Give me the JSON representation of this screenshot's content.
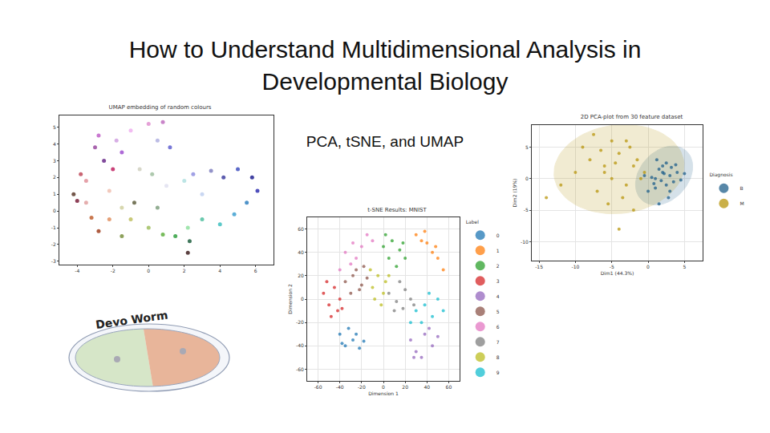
{
  "title": "How to Understand Multidimensional Analysis in Developmental Biology",
  "subtitle": "PCA, tSNE, and UMAP",
  "logo": {
    "text": "Devo Worm"
  },
  "chart_data": [
    {
      "type": "scatter",
      "title": "UMAP embedding of random colours",
      "x": [
        -4.2,
        -4.0,
        -3.8,
        -3.5,
        -3.0,
        -2.8,
        -2.5,
        -2.0,
        -1.8,
        -1.5,
        -1.0,
        0.0,
        0.8,
        0.5,
        1.2,
        -0.5,
        0.2,
        1.0,
        2.0,
        2.5,
        3.5,
        4.2,
        5.0,
        5.8,
        6.1,
        5.5,
        4.8,
        4.0,
        3.0,
        2.2,
        2.3,
        2.2,
        1.5,
        0.8,
        0.0,
        -1.0,
        -1.5,
        -2.2,
        -2.8,
        -3.2,
        -1.5,
        -0.8,
        0.5,
        -3.5,
        -2.2,
        3.0
      ],
      "y": [
        1.0,
        0.6,
        2.2,
        1.8,
        3.8,
        4.5,
        3.0,
        2.5,
        4.2,
        3.5,
        4.8,
        5.2,
        5.3,
        4.2,
        3.8,
        2.5,
        2.2,
        1.5,
        1.8,
        2.2,
        2.4,
        2.0,
        2.5,
        2.0,
        1.2,
        0.5,
        -0.2,
        -0.8,
        -0.5,
        -1.0,
        -1.8,
        -2.5,
        -1.5,
        -1.4,
        -1.0,
        -0.5,
        0.2,
        -0.5,
        -1.2,
        -0.4,
        -1.5,
        0.5,
        0.2,
        0.5,
        1.2,
        1.0
      ],
      "colors": [
        "#5a3a2a",
        "#7a1e3a",
        "#c04a5a",
        "#e0909a",
        "#9a4aa0",
        "#c060c8",
        "#6a2a8a",
        "#c02060",
        "#d0a0e0",
        "#a050d0",
        "#f0b0f0",
        "#e090d0",
        "#c070c0",
        "#b0b0e0",
        "#6060d0",
        "#d0d0c0",
        "#a0c0a0",
        "#e0e0f0",
        "#b0e0e0",
        "#9090e0",
        "#8080c0",
        "#4040a0",
        "#4050c0",
        "#202090",
        "#3030b0",
        "#3080c0",
        "#40a0d0",
        "#40c0c0",
        "#50c0a0",
        "#90e0a0",
        "#206040",
        "#402020",
        "#30a040",
        "#60b040",
        "#a0c060",
        "#c0c060",
        "#d0d0a0",
        "#e09060",
        "#a04020",
        "#c06030",
        "#7a9040",
        "#606040",
        "#80a080",
        "#e0a0a0",
        "#f0c0b0",
        "#c0d0f0"
      ],
      "xlim": [
        -5,
        7
      ],
      "ylim": [
        -3.2,
        5.7
      ],
      "xticks": [
        -4,
        -2,
        0,
        2,
        4,
        6
      ],
      "yticks": [
        -3,
        -2,
        -1,
        0,
        1,
        2,
        3,
        4,
        5
      ],
      "grid": false
    },
    {
      "type": "scatter",
      "title": "t-SNE Results: MNIST",
      "xlabel": "Dimension 1",
      "ylabel": "Dimension 2",
      "legend_title": "Label",
      "legend": "right",
      "series": [
        {
          "name": "0",
          "color": "#1f77b4",
          "x": [
            -40,
            -35,
            -28,
            -22,
            -32,
            -25,
            -38,
            -18
          ],
          "y": [
            -30,
            -40,
            -35,
            -42,
            -25,
            -30,
            -38,
            -36
          ]
        },
        {
          "name": "1",
          "color": "#ff7f0e",
          "x": [
            30,
            35,
            40,
            45,
            50,
            55,
            38,
            48
          ],
          "y": [
            55,
            50,
            48,
            40,
            35,
            25,
            58,
            45
          ]
        },
        {
          "name": "2",
          "color": "#2ca02c",
          "x": [
            0,
            8,
            15,
            20,
            5,
            12,
            18,
            2
          ],
          "y": [
            45,
            50,
            42,
            35,
            35,
            28,
            48,
            55
          ]
        },
        {
          "name": "3",
          "color": "#d62728",
          "x": [
            -55,
            -50,
            -45,
            -40,
            -48,
            -42,
            -52,
            -38
          ],
          "y": [
            5,
            -5,
            10,
            0,
            -15,
            -10,
            15,
            -8
          ]
        },
        {
          "name": "4",
          "color": "#9467bd",
          "x": [
            25,
            30,
            38,
            45,
            35,
            42,
            28,
            50
          ],
          "y": [
            -35,
            -45,
            -30,
            -40,
            -50,
            -25,
            -50,
            -32
          ]
        },
        {
          "name": "5",
          "color": "#8c564b",
          "x": [
            -35,
            -28,
            -20,
            -25,
            -15,
            -30,
            -22,
            -18
          ],
          "y": [
            15,
            20,
            12,
            25,
            18,
            5,
            8,
            28
          ]
        },
        {
          "name": "6",
          "color": "#e377c2",
          "x": [
            -35,
            -28,
            -20,
            -15,
            -30,
            -25,
            -40,
            -10
          ],
          "y": [
            40,
            48,
            45,
            55,
            30,
            35,
            25,
            50
          ]
        },
        {
          "name": "7",
          "color": "#7f7f7f",
          "x": [
            5,
            12,
            20,
            25,
            10,
            18,
            15,
            28
          ],
          "y": [
            5,
            -2,
            8,
            0,
            -10,
            -8,
            15,
            -5
          ]
        },
        {
          "name": "8",
          "color": "#bcbd22",
          "x": [
            -10,
            -5,
            0,
            -8,
            2,
            -12,
            -2,
            5
          ],
          "y": [
            10,
            20,
            5,
            0,
            15,
            25,
            -5,
            20
          ]
        },
        {
          "name": "9",
          "color": "#17becf",
          "x": [
            30,
            38,
            45,
            50,
            35,
            42,
            55,
            25
          ],
          "y": [
            -10,
            -5,
            -15,
            0,
            -20,
            5,
            -10,
            -20
          ]
        }
      ],
      "xlim": [
        -70,
        70
      ],
      "ylim": [
        -70,
        70
      ],
      "xticks": [
        -60,
        -40,
        -20,
        0,
        20,
        40,
        60
      ],
      "yticks": [
        -60,
        -40,
        -20,
        0,
        20,
        40,
        60
      ],
      "grid": true
    },
    {
      "type": "scatter",
      "title": "2D PCA-plot from 30 feature dataset",
      "xlabel": "Dim1 (44.3%)",
      "ylabel": "Dim2 (19%)",
      "legend_title": "Diagnosis",
      "legend": "right",
      "series": [
        {
          "name": "B",
          "color": "#1f5f8b",
          "x": [
            1,
            2,
            3,
            2.5,
            1.5,
            3.5,
            0.5,
            2,
            4,
            3,
            1,
            2.5,
            1.8,
            3.2,
            0.8,
            2.2,
            4.5,
            1.2,
            2.8,
            3.8,
            -0.5,
            0,
            5,
            1.5
          ],
          "y": [
            0,
            1,
            0.5,
            -1,
            1.5,
            -0.5,
            0.2,
            2,
            1,
            -2,
            -1.5,
            2.5,
            -0.3,
            1.8,
            -0.8,
            0.8,
            -0.2,
            3,
            -3,
            2.2,
            0.5,
            -2,
            0.8,
            -4
          ],
          "ellipse": {
            "cx": 2.2,
            "cy": 0.5,
            "rx": 3.5,
            "ry": 5,
            "angle": -30
          }
        },
        {
          "name": "M",
          "color": "#b8960c",
          "x": [
            -2,
            -4,
            -6,
            -3,
            -5,
            -8,
            -1,
            -7,
            -2.5,
            -4.5,
            -10,
            -3.5,
            -6.5,
            -1.5,
            -9,
            -5.5,
            -12,
            -2,
            -4,
            -0.5,
            -7.5,
            -3,
            -5,
            -6,
            -14
          ],
          "y": [
            2,
            4,
            1,
            -1,
            6,
            3,
            0,
            -2,
            5,
            2.5,
            1,
            -3,
            4.5,
            3,
            5,
            -4,
            -1,
            -5,
            -8,
            1,
            7,
            6,
            0,
            2,
            -3
          ],
          "ellipse": {
            "cx": -4,
            "cy": 1.5,
            "rx": 9,
            "ry": 7,
            "angle": 10
          }
        }
      ],
      "xlim": [
        -16,
        7.5
      ],
      "ylim": [
        -13,
        8.5
      ],
      "xticks": [
        -15,
        -10,
        -5,
        0,
        5
      ],
      "yticks": [
        -10,
        -5,
        0,
        5
      ],
      "grid": true
    }
  ]
}
